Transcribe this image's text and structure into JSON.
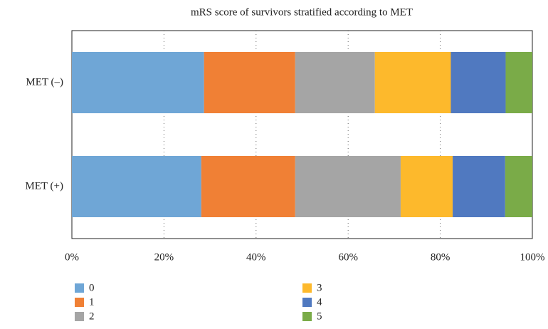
{
  "chart_data": {
    "type": "stacked_barh_percent",
    "title": "mRS score of survivors stratified according to MET",
    "categories": [
      "MET (–)",
      "MET (+)"
    ],
    "series": [
      {
        "name": "0",
        "color": "#6fa6d6",
        "values": [
          28.7,
          28.1
        ]
      },
      {
        "name": "1",
        "color": "#f08035",
        "values": [
          19.8,
          20.4
        ]
      },
      {
        "name": "2",
        "color": "#a5a5a5",
        "values": [
          17.3,
          22.9
        ]
      },
      {
        "name": "3",
        "color": "#fdb92c",
        "values": [
          16.5,
          11.3
        ]
      },
      {
        "name": "4",
        "color": "#5079c0",
        "values": [
          11.9,
          11.4
        ]
      },
      {
        "name": "5",
        "color": "#7aab48",
        "values": [
          5.8,
          5.9
        ]
      }
    ],
    "xlim": [
      0,
      100
    ],
    "xticks": [
      {
        "value": 0,
        "label": "0%"
      },
      {
        "value": 20,
        "label": "20%"
      },
      {
        "value": 40,
        "label": "40%"
      },
      {
        "value": 60,
        "label": "60%"
      },
      {
        "value": 80,
        "label": "80%"
      },
      {
        "value": 100,
        "label": "100%"
      }
    ],
    "grid": true,
    "legend": "bottom"
  }
}
